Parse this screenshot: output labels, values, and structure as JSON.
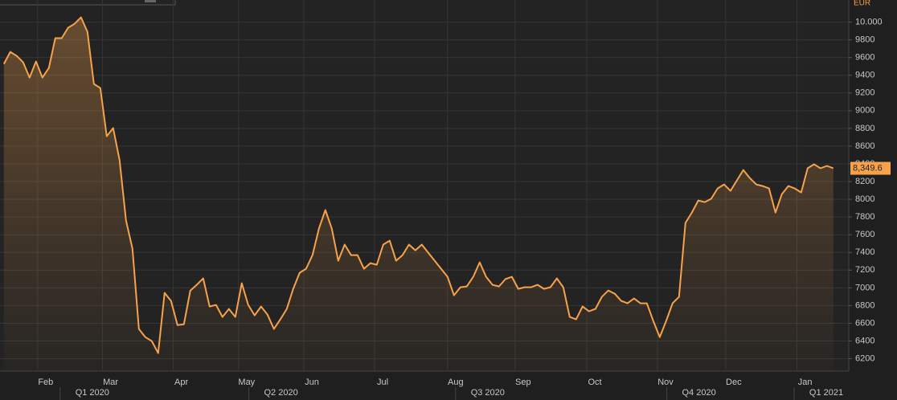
{
  "chart_data": {
    "type": "line",
    "unit": "EUR",
    "series": [
      {
        "color": "#f7a24b",
        "values": [
          9528,
          9664,
          9619,
          9546,
          9374,
          9556,
          9374,
          9483,
          9819,
          9819,
          9937,
          9982,
          10054,
          9891,
          9302,
          9256,
          8712,
          8803,
          8440,
          7760,
          7442,
          6535,
          6444,
          6399,
          6263,
          6943,
          6853,
          6580,
          6589,
          6970,
          7034,
          7107,
          6789,
          6807,
          6671,
          6762,
          6671,
          7052,
          6807,
          6689,
          6789,
          6698,
          6535,
          6644,
          6762,
          6989,
          7170,
          7215,
          7370,
          7669,
          7878,
          7669,
          7306,
          7488,
          7370,
          7370,
          7215,
          7279,
          7261,
          7488,
          7533,
          7306,
          7370,
          7488,
          7424,
          7488,
          7397,
          7306,
          7215,
          7125,
          6916,
          7007,
          7016,
          7125,
          7288,
          7125,
          7034,
          7016,
          7098,
          7125,
          6989,
          7007,
          7007,
          7034,
          6989,
          7007,
          7107,
          7007,
          6671,
          6644,
          6789,
          6735,
          6762,
          6898,
          6970,
          6934,
          6853,
          6825,
          6880,
          6825,
          6825,
          6626,
          6444,
          6626,
          6825,
          6898,
          7733,
          7850,
          7986,
          7968,
          8005,
          8122,
          8168,
          8095,
          8213,
          8331,
          8240,
          8168,
          8150,
          8122,
          7850,
          8059,
          8150,
          8122,
          8077,
          8350,
          8395,
          8350,
          8377,
          8349.6
        ]
      }
    ],
    "last_label": {
      "value": 8349.6,
      "label": "8,349.6"
    },
    "xlim": [
      -0.6,
      131.4
    ],
    "ylim": [
      6060,
      10250
    ],
    "yticks": [
      6200,
      6400,
      6600,
      6800,
      7000,
      7200,
      7400,
      7600,
      7800,
      8000,
      8200,
      8400,
      8600,
      8800,
      9000,
      9200,
      9400,
      9600,
      9800,
      {
        "value": 10000,
        "label": "10.000"
      }
    ],
    "xticks": [
      {
        "value": 6.5,
        "label": "Feb"
      },
      {
        "value": 16.6,
        "label": "Mar"
      },
      {
        "value": 27.6,
        "label": "Apr"
      },
      {
        "value": 37.75,
        "label": "May"
      },
      {
        "value": 47.9,
        "label": "Jun"
      },
      {
        "value": 58.9,
        "label": "Jul"
      },
      {
        "value": 70.25,
        "label": "Aug"
      },
      {
        "value": 80.75,
        "label": "Sep"
      },
      {
        "value": 91.9,
        "label": "Oct"
      },
      {
        "value": 102.9,
        "label": "Nov"
      },
      {
        "value": 113.5,
        "label": "Dec"
      },
      {
        "value": 124.6,
        "label": "Jan"
      }
    ],
    "quarter_ticks": [
      {
        "value": 13.75,
        "label": "Q1 2020"
      },
      {
        "value": 43.1,
        "label": "Q2 2020"
      },
      {
        "value": 75.25,
        "label": "Q3 2020"
      },
      {
        "value": 108.1,
        "label": "Q4 2020"
      },
      {
        "value": 127.9,
        "label": "Q1 2021"
      }
    ],
    "grid": true
  }
}
